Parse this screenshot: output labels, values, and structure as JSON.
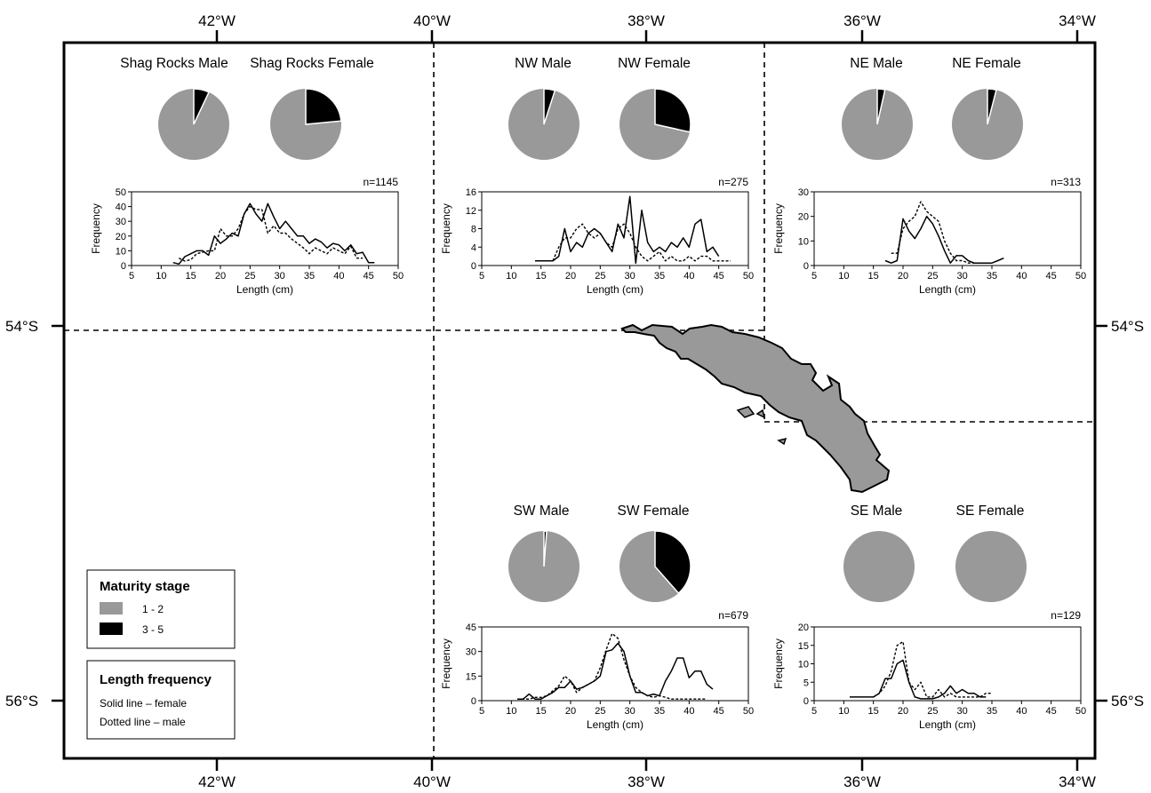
{
  "map": {
    "longitude_labels": [
      "42°W",
      "40°W",
      "38°W",
      "36°W",
      "34°W"
    ],
    "latitude_labels": [
      "54°S",
      "56°S"
    ]
  },
  "legend": {
    "maturity_title": "Maturity stage",
    "maturity_items": [
      {
        "label": "1 - 2",
        "color": "#999999"
      },
      {
        "label": "3 - 5",
        "color": "#000000"
      }
    ],
    "length_title": "Length frequency",
    "length_items": [
      "Solid line – female",
      "Dotted line – male"
    ]
  },
  "regions": [
    {
      "id": "shag",
      "male_title": "Shag Rocks Male",
      "female_title": "Shag Rocks Female",
      "male_mature_fraction": 0.07,
      "female_mature_fraction": 0.235,
      "n": "n=1145",
      "chart_data": {
        "type": "line",
        "xlabel": "Length (cm)",
        "ylabel": "Frequency",
        "xlim": [
          5,
          50
        ],
        "ylim": [
          0,
          50
        ],
        "xticks": [
          5,
          10,
          15,
          20,
          25,
          30,
          35,
          40,
          45,
          50
        ],
        "yticks": [
          0,
          10,
          20,
          30,
          40,
          50
        ],
        "series": [
          {
            "style": "solid",
            "x": [
              12,
              13,
              14,
              15,
              16,
              17,
              18,
              19,
              20,
              21,
              22,
              23,
              24,
              25,
              26,
              27,
              28,
              29,
              30,
              31,
              32,
              33,
              34,
              35,
              36,
              37,
              38,
              39,
              40,
              41,
              42,
              43,
              44,
              45,
              46
            ],
            "y": [
              2,
              1,
              6,
              8,
              10,
              10,
              7,
              20,
              15,
              18,
              22,
              20,
              35,
              42,
              35,
              30,
              42,
              33,
              25,
              30,
              25,
              20,
              20,
              15,
              18,
              16,
              12,
              15,
              14,
              10,
              14,
              8,
              9,
              2,
              2
            ]
          },
          {
            "style": "dotted",
            "x": [
              13,
              14,
              15,
              16,
              17,
              18,
              19,
              20,
              21,
              22,
              23,
              24,
              25,
              26,
              27,
              28,
              29,
              30,
              31,
              32,
              33,
              34,
              35,
              36,
              37,
              38,
              39,
              40,
              41,
              42,
              43,
              44
            ],
            "y": [
              5,
              3,
              4,
              8,
              9,
              10,
              10,
              25,
              20,
              20,
              25,
              35,
              40,
              38,
              38,
              22,
              27,
              22,
              22,
              18,
              15,
              12,
              8,
              12,
              10,
              8,
              12,
              10,
              8,
              13,
              5,
              5
            ]
          }
        ]
      }
    },
    {
      "id": "nw",
      "male_title": "NW Male",
      "female_title": "NW Female",
      "male_mature_fraction": 0.05,
      "female_mature_fraction": 0.285,
      "n": "n=275",
      "chart_data": {
        "type": "line",
        "xlabel": "Length (cm)",
        "ylabel": "Frequency",
        "xlim": [
          5,
          50
        ],
        "ylim": [
          0,
          16
        ],
        "xticks": [
          5,
          10,
          15,
          20,
          25,
          30,
          35,
          40,
          45,
          50
        ],
        "yticks": [
          0,
          4,
          8,
          12,
          16
        ],
        "series": [
          {
            "style": "solid",
            "x": [
              14,
              15,
              16,
              17,
              18,
              19,
              20,
              21,
              22,
              23,
              24,
              25,
              26,
              27,
              28,
              29,
              30,
              31,
              32,
              33,
              34,
              35,
              36,
              37,
              38,
              39,
              40,
              41,
              42,
              43,
              44,
              45
            ],
            "y": [
              1,
              1,
              1,
              1,
              2,
              8,
              3,
              5,
              4,
              7,
              8,
              7,
              5,
              3,
              9,
              6,
              15,
              0.5,
              12,
              5,
              3,
              4,
              3,
              5,
              4,
              6,
              4,
              9,
              10,
              3,
              4,
              2
            ]
          },
          {
            "style": "dotted",
            "x": [
              17,
              18,
              19,
              20,
              21,
              22,
              23,
              24,
              25,
              26,
              27,
              28,
              29,
              30,
              31,
              32,
              33,
              34,
              35,
              36,
              37,
              38,
              39,
              40,
              41,
              42,
              43,
              44,
              45,
              46,
              47
            ],
            "y": [
              1,
              4,
              6,
              6,
              8,
              9,
              7,
              6,
              7,
              5,
              4,
              8,
              9,
              7,
              4,
              2,
              1,
              2,
              3,
              1,
              2,
              1,
              1,
              2,
              1,
              2,
              2,
              1,
              1,
              1,
              1
            ]
          }
        ]
      }
    },
    {
      "id": "ne",
      "male_title": "NE Male",
      "female_title": "NE Female",
      "male_mature_fraction": 0.035,
      "female_mature_fraction": 0.04,
      "n": "n=313",
      "chart_data": {
        "type": "line",
        "xlabel": "Length (cm)",
        "ylabel": "Frequency",
        "xlim": [
          5,
          50
        ],
        "ylim": [
          0,
          30
        ],
        "xticks": [
          5,
          10,
          15,
          20,
          25,
          30,
          35,
          40,
          45,
          50
        ],
        "yticks": [
          0,
          10,
          20,
          30
        ],
        "series": [
          {
            "style": "solid",
            "x": [
              17,
              18,
              19,
              20,
              21,
              22,
              23,
              24,
              25,
              26,
              27,
              28,
              29,
              30,
              31,
              32,
              33,
              34,
              35,
              36,
              37
            ],
            "y": [
              2,
              1,
              2,
              19,
              14,
              11,
              15,
              20,
              17,
              12,
              6,
              1,
              4,
              4,
              2,
              1,
              1,
              1,
              1,
              2,
              3
            ]
          },
          {
            "style": "dotted",
            "x": [
              18,
              19,
              20,
              21,
              22,
              23,
              24,
              25,
              26,
              27,
              28,
              29,
              30,
              31,
              32,
              33,
              34
            ],
            "y": [
              5,
              5,
              15,
              18,
              20,
              26,
              22,
              20,
              18,
              10,
              5,
              2,
              2,
              1,
              1,
              1,
              1
            ]
          }
        ]
      }
    },
    {
      "id": "sw",
      "male_title": "SW Male",
      "female_title": "SW Female",
      "male_mature_fraction": 0.012,
      "female_mature_fraction": 0.385,
      "n": "n=679",
      "chart_data": {
        "type": "line",
        "xlabel": "Length (cm)",
        "ylabel": "Frequency",
        "xlim": [
          5,
          50
        ],
        "ylim": [
          0,
          45
        ],
        "xticks": [
          5,
          10,
          15,
          20,
          25,
          30,
          35,
          40,
          45,
          50
        ],
        "yticks": [
          0,
          15,
          30,
          45
        ],
        "series": [
          {
            "style": "solid",
            "x": [
              11,
              12,
              13,
              14,
              15,
              16,
              17,
              18,
              19,
              20,
              21,
              22,
              23,
              24,
              25,
              26,
              27,
              28,
              29,
              30,
              31,
              32,
              33,
              34,
              35,
              36,
              37,
              38,
              39,
              40,
              41,
              42,
              43,
              44
            ],
            "y": [
              1,
              1,
              4,
              1,
              1,
              3,
              5,
              8,
              8,
              12,
              7,
              8,
              10,
              12,
              15,
              30,
              31,
              35,
              30,
              15,
              5,
              5,
              3,
              4,
              3,
              12,
              18,
              26,
              26,
              14,
              18,
              18,
              10,
              7
            ]
          },
          {
            "style": "dotted",
            "x": [
              11,
              12,
              13,
              14,
              15,
              16,
              17,
              18,
              19,
              20,
              21,
              22,
              23,
              24,
              25,
              26,
              27,
              28,
              29,
              30,
              31,
              32,
              33,
              34,
              35,
              36,
              37,
              38,
              39,
              40,
              41,
              42,
              43
            ],
            "y": [
              1,
              1,
              1,
              2,
              2,
              3,
              6,
              9,
              15,
              12,
              5,
              8,
              10,
              12,
              20,
              31,
              41,
              38,
              25,
              15,
              8,
              5,
              3,
              2,
              3,
              2,
              1,
              1,
              1,
              1,
              1,
              1,
              1
            ]
          }
        ]
      }
    },
    {
      "id": "se",
      "male_title": "SE Male",
      "female_title": "SE Female",
      "male_mature_fraction": 0,
      "female_mature_fraction": 0,
      "n": "n=129",
      "chart_data": {
        "type": "line",
        "xlabel": "Length (cm)",
        "ylabel": "Frequency",
        "xlim": [
          5,
          50
        ],
        "ylim": [
          0,
          20
        ],
        "xticks": [
          5,
          10,
          15,
          20,
          25,
          30,
          35,
          40,
          45,
          50
        ],
        "yticks": [
          0,
          5,
          10,
          15,
          20
        ],
        "series": [
          {
            "style": "solid",
            "x": [
              11,
              12,
              13,
              14,
              15,
              16,
              17,
              18,
              19,
              20,
              21,
              22,
              23,
              24,
              25,
              26,
              27,
              28,
              29,
              30,
              31,
              32,
              33,
              34
            ],
            "y": [
              1,
              1,
              1,
              1,
              1,
              2,
              6,
              6,
              10,
              11,
              5,
              1,
              0.5,
              0.5,
              0.5,
              1,
              2,
              4,
              2,
              3,
              2,
              2,
              1,
              1
            ]
          },
          {
            "style": "dotted",
            "x": [
              15,
              16,
              17,
              18,
              19,
              20,
              21,
              22,
              23,
              24,
              25,
              26,
              27,
              28,
              29,
              30,
              31,
              32,
              33,
              34,
              35
            ],
            "y": [
              1,
              2,
              4,
              8,
              15,
              16,
              5,
              3,
              5,
              1,
              1,
              3,
              1,
              2,
              1,
              1,
              1,
              1,
              1,
              2,
              2
            ]
          }
        ]
      }
    }
  ]
}
